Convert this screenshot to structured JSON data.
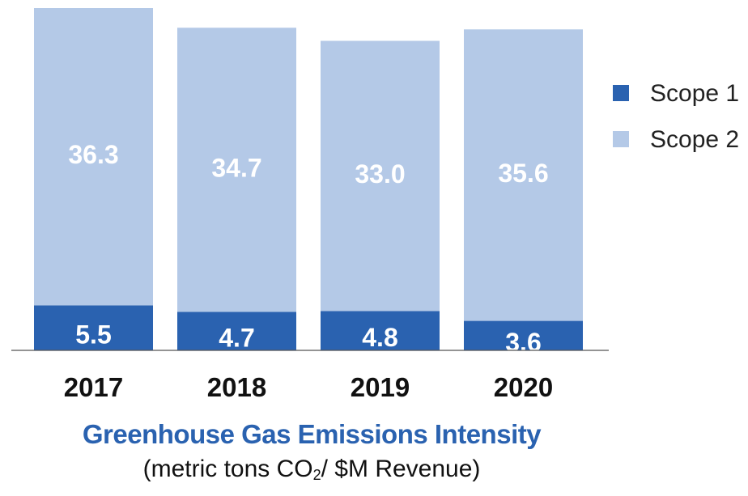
{
  "chart_data": {
    "type": "bar",
    "stacked": true,
    "title": "Greenhouse Gas Emissions Intensity",
    "subtitle": {
      "before": "(metric tons CO",
      "sub": "2",
      "after": "/ $M Revenue)"
    },
    "categories": [
      "2017",
      "2018",
      "2019",
      "2020"
    ],
    "series": [
      {
        "name": "Scope 1",
        "values": [
          5.5,
          4.7,
          4.8,
          3.6
        ],
        "color": "#2a62b0"
      },
      {
        "name": "Scope 2",
        "values": [
          36.3,
          34.7,
          33.0,
          35.6
        ],
        "color": "#b4c9e7"
      }
    ],
    "data_labels": [
      [
        "5.5",
        "4.7",
        "4.8",
        "3.6"
      ],
      [
        "36.3",
        "34.7",
        "33.0",
        "35.6"
      ]
    ],
    "ylim": [
      0,
      41.8
    ],
    "legend_position": "right",
    "grid": false
  }
}
